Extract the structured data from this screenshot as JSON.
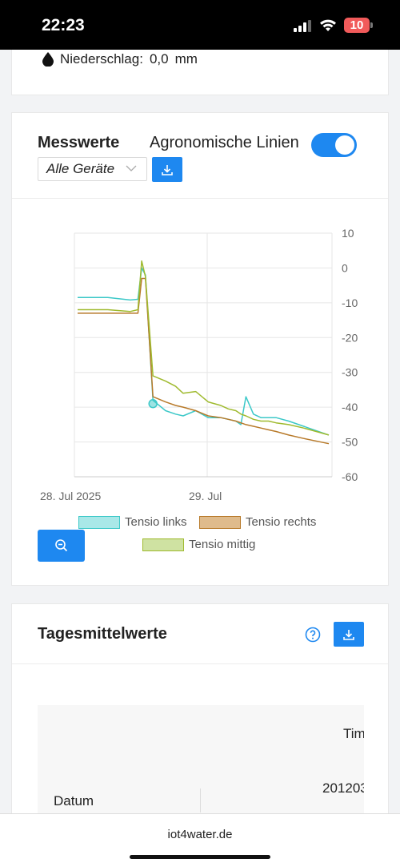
{
  "status": {
    "time": "22:23",
    "battery": "10"
  },
  "weather": {
    "label": "Niederschlag:",
    "value": "0,0",
    "unit": "mm",
    "icon": "drop-icon"
  },
  "messwerte": {
    "title": "Messwerte",
    "agro_label": "Agronomische Linien",
    "agro_enabled": true,
    "device_select": "Alle Geräte",
    "download_icon": "download-icon",
    "zoom_icon": "zoom-out-icon"
  },
  "chart_data": {
    "type": "line",
    "x_labels": [
      "28. Jul 2025",
      "29. Jul"
    ],
    "y_ticks": [
      10,
      0,
      -10,
      -20,
      -30,
      -40,
      -50,
      -60
    ],
    "ylim": [
      -60,
      10
    ],
    "y_axis_side": "right",
    "grid": true,
    "legend_position": "bottom",
    "x": [
      0,
      0.12,
      0.21,
      0.24,
      0.255,
      0.27,
      0.3,
      0.35,
      0.39,
      0.42,
      0.47,
      0.52,
      0.57,
      0.6,
      0.63,
      0.65,
      0.67,
      0.7,
      0.73,
      0.76,
      0.79,
      0.84,
      0.9,
      1.0
    ],
    "series": [
      {
        "name": "Tensio links",
        "color": "#3cc8c8",
        "values": [
          -8.5,
          -8.5,
          -9.2,
          -9,
          0,
          -2,
          -38,
          -41,
          -42,
          -42.5,
          -41,
          -43,
          -43,
          -43.5,
          -44,
          -45,
          -37,
          -42,
          -43,
          -43,
          -43,
          -44,
          -45.5,
          -48
        ]
      },
      {
        "name": "Tensio rechts",
        "color": "#b87a2a",
        "values": [
          -13,
          -13,
          -13,
          -13,
          -3,
          -3,
          -37,
          -38.5,
          -39.5,
          -40,
          -41,
          -42.5,
          -43,
          -43.5,
          -44,
          -44.5,
          -45,
          -45.5,
          -46,
          -46.5,
          -47,
          -48,
          -49,
          -50.5
        ]
      },
      {
        "name": "Tensio mittig",
        "color": "#9fba2e",
        "values": [
          -12,
          -12,
          -12.5,
          -12,
          2,
          -2.5,
          -31,
          -32.5,
          -34,
          -36,
          -35.5,
          -38.5,
          -39.5,
          -40.5,
          -41,
          -42,
          -42.5,
          -43.5,
          -44,
          -44,
          -44.5,
          -45,
          -46,
          -48
        ]
      }
    ],
    "marker": {
      "series": "Tensio links",
      "x": 0.3,
      "y": -39
    }
  },
  "tagesmittelwerte": {
    "title": "Tagesmittelwerte",
    "help_icon": "question-circle-icon",
    "table": {
      "header_partial": "Tim",
      "value_partial": "201203",
      "row_label": "Datum"
    }
  },
  "browser": {
    "url": "iot4water.de"
  }
}
